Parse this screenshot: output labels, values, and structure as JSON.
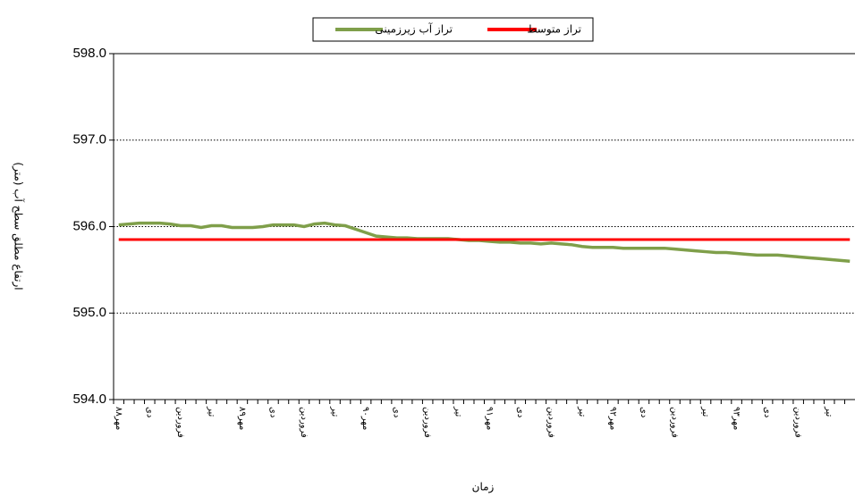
{
  "chart_data": {
    "type": "line",
    "y_label": "ارتفاع مطلق سطح آب (متر)",
    "x_label": "زمان",
    "categories": [
      "مهر۸۸",
      null,
      null,
      "دی",
      null,
      null,
      "فروردین",
      null,
      null,
      "تیر",
      null,
      null,
      "مهر۸۹",
      null,
      null,
      "دی",
      null,
      null,
      "فروردین",
      null,
      null,
      "تیر",
      null,
      null,
      "مهر۹۰",
      null,
      null,
      "دی",
      null,
      null,
      "فروردین",
      null,
      null,
      "تیر",
      null,
      null,
      "مهر۹۱",
      null,
      null,
      "دی",
      null,
      null,
      "فروردین",
      null,
      null,
      "تیر",
      null,
      null,
      "مهر۹۲",
      null,
      null,
      "دی",
      null,
      null,
      "فروردین",
      null,
      null,
      "تیر",
      null,
      null,
      "مهر۹۳",
      null,
      null,
      "دی",
      null,
      null,
      "فروردین",
      null,
      null,
      "تیر",
      null,
      null
    ],
    "series": [
      {
        "name": "تراز آب زیرزمینی",
        "color": "#7f9f4a",
        "values": [
          596.02,
          596.03,
          596.04,
          596.04,
          596.04,
          596.03,
          596.01,
          596.01,
          595.99,
          596.01,
          596.01,
          595.99,
          595.99,
          595.99,
          596.0,
          596.02,
          596.02,
          596.02,
          596.0,
          596.03,
          596.04,
          596.02,
          596.01,
          595.97,
          595.93,
          595.89,
          595.88,
          595.87,
          595.87,
          595.86,
          595.86,
          595.86,
          595.86,
          595.85,
          595.84,
          595.84,
          595.83,
          595.82,
          595.82,
          595.81,
          595.81,
          595.8,
          595.81,
          595.8,
          595.79,
          595.77,
          595.76,
          595.76,
          595.76,
          595.75,
          595.75,
          595.75,
          595.75,
          595.75,
          595.74,
          595.73,
          595.72,
          595.71,
          595.7,
          595.7,
          595.69,
          595.68,
          595.67,
          595.67,
          595.67,
          595.66,
          595.65,
          595.64,
          595.63,
          595.62,
          595.61,
          595.6
        ]
      },
      {
        "name": "تراز متوسط",
        "color": "#ff0000",
        "values": [
          595.85,
          595.85,
          595.85,
          595.85,
          595.85,
          595.85,
          595.85,
          595.85,
          595.85,
          595.85,
          595.85,
          595.85,
          595.85,
          595.85,
          595.85,
          595.85,
          595.85,
          595.85,
          595.85,
          595.85,
          595.85,
          595.85,
          595.85,
          595.85,
          595.85,
          595.85,
          595.85,
          595.85,
          595.85,
          595.85,
          595.85,
          595.85,
          595.85,
          595.85,
          595.85,
          595.85,
          595.85,
          595.85,
          595.85,
          595.85,
          595.85,
          595.85,
          595.85,
          595.85,
          595.85,
          595.85,
          595.85,
          595.85,
          595.85,
          595.85,
          595.85,
          595.85,
          595.85,
          595.85,
          595.85,
          595.85,
          595.85,
          595.85,
          595.85,
          595.85,
          595.85,
          595.85,
          595.85,
          595.85,
          595.85,
          595.85,
          595.85,
          595.85,
          595.85,
          595.85,
          595.85,
          595.85
        ]
      }
    ],
    "ylim": [
      594,
      598
    ],
    "yticks": [
      {
        "value": 594,
        "label": "594.0"
      },
      {
        "value": 595,
        "label": "595.0"
      },
      {
        "value": 596,
        "label": "596.0"
      },
      {
        "value": 597,
        "label": "597.0"
      },
      {
        "value": 598,
        "label": "598.0"
      }
    ],
    "grid": true,
    "legend": "top"
  }
}
